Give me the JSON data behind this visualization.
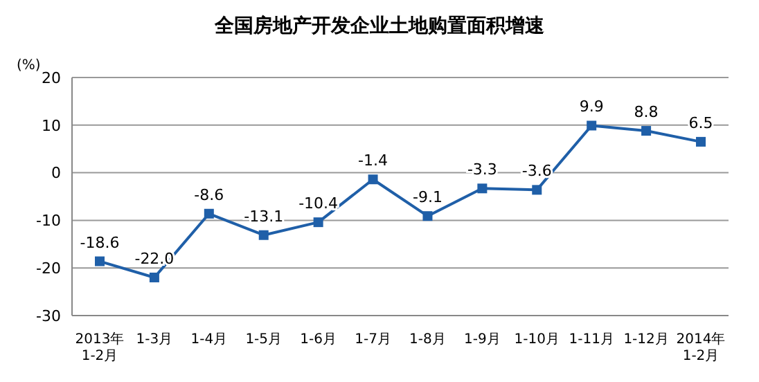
{
  "chart_data": {
    "type": "line",
    "title": "全国房地产开发企业土地购置面积增速",
    "ylabel": "(%)",
    "categories": [
      "2013年\n1-2月",
      "1-3月",
      "1-4月",
      "1-5月",
      "1-6月",
      "1-7月",
      "1-8月",
      "1-9月",
      "1-10月",
      "1-11月",
      "1-12月",
      "2014年\n1-2月"
    ],
    "series": [
      {
        "color": "#1f5fa8",
        "values": [
          -18.6,
          -22.0,
          -8.6,
          -13.1,
          -10.4,
          -1.4,
          -9.1,
          -3.3,
          -3.6,
          9.9,
          8.8,
          6.5
        ],
        "value_labels": [
          "-18.6",
          "-22.0",
          "-8.6",
          "-13.1",
          "-10.4",
          "-1.4",
          "-9.1",
          "-3.3",
          "-3.6",
          "9.9",
          "8.8",
          "6.5"
        ]
      }
    ],
    "ylim": [
      -30,
      20
    ],
    "yticks": [
      -30,
      -20,
      -10,
      0,
      10,
      20
    ],
    "grid": "y",
    "marker": "square",
    "line_style": "solid"
  }
}
